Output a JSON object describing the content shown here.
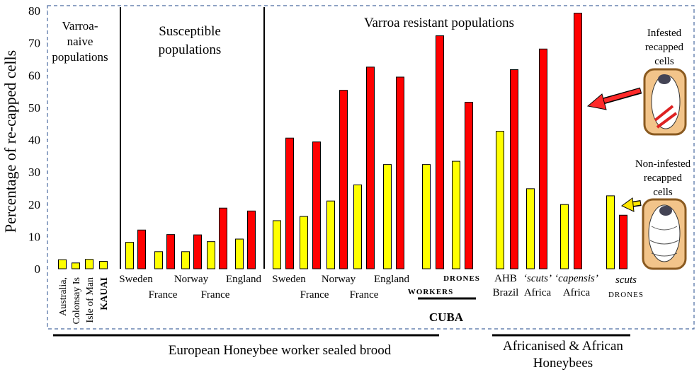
{
  "chart_data": {
    "type": "bar",
    "ylabel": "Percentage of re-capped cells",
    "ylim": [
      0,
      80
    ],
    "yticks": [
      0,
      10,
      20,
      30,
      40,
      50,
      60,
      70,
      80
    ],
    "categories": [
      [
        "Australia,"
      ],
      [
        "Colonsay Is"
      ],
      [
        "Isle of Man"
      ],
      [
        "KAUAI"
      ],
      [
        "Sweden"
      ],
      [
        "France"
      ],
      [
        "Norway"
      ],
      [
        "France"
      ],
      [
        "England"
      ],
      [
        "Sweden"
      ],
      [
        "France"
      ],
      [
        "Norway"
      ],
      [
        "France"
      ],
      [
        "England"
      ],
      [
        "WORKERS"
      ],
      [
        "DRONES"
      ],
      [
        "AHB",
        "Brazil"
      ],
      [
        "‘scuts’",
        "Africa"
      ],
      [
        "‘capensis’",
        "Africa"
      ],
      [
        "scuts",
        "DRONES"
      ]
    ],
    "series": [
      {
        "color": "#ffff00",
        "values": [
          2.8,
          1.8,
          2.9,
          2.3,
          8.2,
          5.3,
          5.3,
          8.4,
          9.2,
          14.9,
          16.2,
          21,
          26,
          32.3,
          32.3,
          33.3,
          42.6,
          24.8,
          19.9,
          22.6
        ]
      },
      {
        "color": "#ff0000",
        "values": [
          null,
          null,
          null,
          null,
          12,
          10.6,
          10.5,
          18.8,
          17.9,
          40.5,
          39.3,
          55.3,
          62.5,
          59.4,
          72.2,
          51.6,
          61.7,
          68.1,
          79.2,
          16.6
        ]
      }
    ],
    "groups": [
      [
        "Varroa-",
        "naive",
        "populations"
      ],
      [
        "Susceptible",
        "populations"
      ],
      [
        "Varroa resistant populations"
      ]
    ],
    "annotations": {
      "infested": [
        "Infested",
        "recapped",
        "cells"
      ],
      "non_infested": [
        "Non-infested",
        "recapped",
        "cells"
      ],
      "cuba": "CUBA",
      "european": "European Honeybee worker sealed brood",
      "african": [
        "Africanised & African",
        "Honeybees"
      ]
    }
  }
}
